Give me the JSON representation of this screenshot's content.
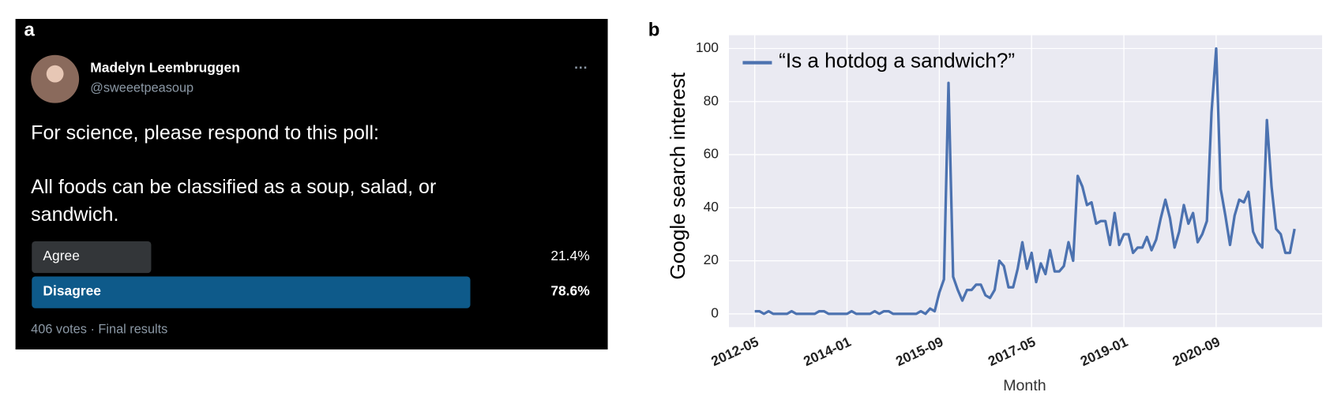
{
  "panel_labels": [
    "a",
    "b"
  ],
  "tweet": {
    "name": "Madelyn Leembruggen",
    "handle": "@sweeetpeasoup",
    "more": "···",
    "text": [
      "For science, please respond to this poll:",
      "All foods can be classified as a soup, salad, or",
      "sandwich."
    ],
    "poll": {
      "labels": [
        "Agree",
        "Disagree"
      ],
      "values": [
        21.4,
        78.6
      ],
      "value_labels": [
        "21.4%",
        "78.6%"
      ],
      "colors": [
        "#333639",
        "#0e5a8a"
      ]
    },
    "footer": "406 votes · Final results"
  },
  "chart_data": {
    "type": "line",
    "x_label": "Month",
    "y_label": "Google search interest",
    "categories": [
      "2012-05",
      null,
      null,
      null,
      null,
      null,
      null,
      null,
      null,
      null,
      null,
      null,
      null,
      null,
      null,
      null,
      null,
      null,
      null,
      null,
      "2014-01",
      null,
      null,
      null,
      null,
      null,
      null,
      null,
      null,
      null,
      null,
      null,
      null,
      null,
      null,
      null,
      null,
      null,
      null,
      null,
      "2015-09",
      null,
      null,
      null,
      null,
      null,
      null,
      null,
      null,
      null,
      null,
      null,
      null,
      null,
      null,
      null,
      null,
      null,
      null,
      null,
      "2017-05",
      null,
      null,
      null,
      null,
      null,
      null,
      null,
      null,
      null,
      null,
      null,
      null,
      null,
      null,
      null,
      null,
      null,
      null,
      null,
      "2019-01",
      null,
      null,
      null,
      null,
      null,
      null,
      null,
      null,
      null,
      null,
      null,
      null,
      null,
      null,
      null,
      null,
      null,
      null,
      null,
      "2020-09",
      null,
      null,
      null,
      null,
      null,
      null,
      null,
      null,
      null,
      null,
      null,
      null,
      null,
      null,
      null,
      null,
      null
    ],
    "series": [
      {
        "name": "“Is a hotdog a sandwich?”",
        "color": "#4c72b0",
        "values": [
          1,
          1,
          0,
          1,
          0,
          0,
          0,
          0,
          1,
          0,
          0,
          0,
          0,
          0,
          1,
          1,
          0,
          0,
          0,
          0,
          0,
          1,
          0,
          0,
          0,
          0,
          1,
          0,
          1,
          1,
          0,
          0,
          0,
          0,
          0,
          0,
          1,
          0,
          2,
          1,
          8,
          13,
          87,
          14,
          9,
          5,
          9,
          9,
          11,
          11,
          7,
          6,
          9,
          20,
          18,
          10,
          10,
          17,
          27,
          17,
          23,
          12,
          19,
          15,
          24,
          16,
          16,
          18,
          27,
          20,
          52,
          48,
          41,
          42,
          34,
          35,
          35,
          26,
          38,
          26,
          30,
          30,
          23,
          25,
          25,
          29,
          24,
          28,
          36,
          43,
          36,
          25,
          31,
          41,
          34,
          38,
          27,
          30,
          35,
          76,
          100,
          47,
          37,
          26,
          37,
          43,
          42,
          46,
          31,
          27,
          25,
          73,
          48,
          32,
          30,
          23,
          23,
          32
        ]
      }
    ],
    "ylim": [
      -5,
      105
    ],
    "yticks": [
      0,
      20,
      40,
      60,
      80,
      100
    ],
    "grid": true,
    "legend": "upper left"
  }
}
